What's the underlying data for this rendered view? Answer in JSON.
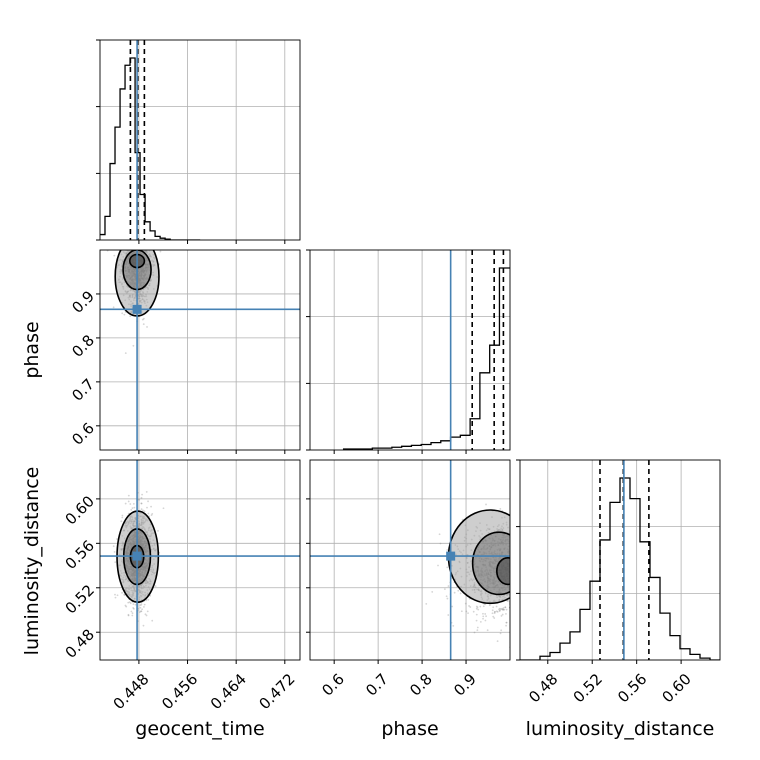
{
  "chart_data": {
    "type": "corner",
    "parameters": [
      "geocent_time",
      "phase",
      "luminosity_distance"
    ],
    "axis_labels": {
      "geocent_time": "geocent_time",
      "phase": "phase",
      "luminosity_distance": "luminosity_distance"
    },
    "ranges": {
      "geocent_time": [
        0.4416,
        0.4745
      ],
      "phase": [
        0.545,
        1.0
      ],
      "luminosity_distance": [
        0.455,
        0.635
      ]
    },
    "ticks": {
      "geocent_time": [
        0.448,
        0.456,
        0.464,
        0.472
      ],
      "phase": [
        0.6,
        0.7,
        0.8,
        0.9
      ],
      "luminosity_distance": [
        0.48,
        0.52,
        0.56,
        0.6
      ]
    },
    "tick_labels": {
      "geocent_time": [
        "0.448",
        "0.456",
        "0.464",
        "0.472"
      ],
      "phase": [
        "0.6",
        "0.7",
        "0.8",
        "0.9"
      ],
      "luminosity_distance": [
        "0.48",
        "0.52",
        "0.56",
        "0.60"
      ]
    },
    "truths": {
      "geocent_time": 0.4477,
      "phase": 0.865,
      "luminosity_distance": 0.5485
    },
    "quantiles": {
      "geocent_time": [
        0.4466,
        0.4478,
        0.4489
      ],
      "phase": [
        0.914,
        0.964,
        0.985
      ],
      "luminosity_distance": [
        0.527,
        0.548,
        0.571
      ]
    },
    "histograms": {
      "geocent_time": {
        "edges": [
          0.4416,
          0.44242,
          0.44325,
          0.44407,
          0.4449,
          0.44572,
          0.44654,
          0.44737,
          0.44819,
          0.44902,
          0.44984,
          0.45066,
          0.45149,
          0.45231,
          0.45314,
          0.45396,
          0.45478,
          0.45561,
          0.45643,
          0.45726,
          0.45808
        ],
        "counts": [
          0.03,
          0.13,
          0.42,
          0.62,
          0.83,
          0.96,
          1.0,
          0.48,
          0.25,
          0.1,
          0.05,
          0.02,
          0.01,
          0.005,
          0,
          0,
          0,
          0,
          0,
          0
        ]
      },
      "phase": {
        "edges": [
          0.62,
          0.6423,
          0.6645,
          0.6868,
          0.709,
          0.7313,
          0.7535,
          0.7758,
          0.798,
          0.8203,
          0.8425,
          0.8648,
          0.887,
          0.9093,
          0.9315,
          0.9538,
          0.976,
          1.0
        ],
        "counts": [
          0.005,
          0.005,
          0.005,
          0.01,
          0.01,
          0.015,
          0.02,
          0.025,
          0.03,
          0.04,
          0.05,
          0.07,
          0.08,
          0.17,
          0.42,
          0.57,
          0.99
        ]
      },
      "luminosity_distance": {
        "edges": [
          0.455,
          0.464,
          0.473,
          0.482,
          0.491,
          0.5,
          0.509,
          0.518,
          0.527,
          0.536,
          0.545,
          0.554,
          0.563,
          0.572,
          0.581,
          0.59,
          0.599,
          0.608,
          0.617,
          0.626,
          0.635
        ],
        "counts": [
          0.0,
          0.0,
          0.02,
          0.04,
          0.09,
          0.15,
          0.27,
          0.42,
          0.64,
          0.84,
          0.97,
          0.86,
          0.63,
          0.44,
          0.25,
          0.13,
          0.06,
          0.03,
          0.01,
          0.0
        ]
      }
    },
    "pairs": [
      {
        "x": "geocent_time",
        "y": "phase",
        "peak": [
          0.4477,
          0.975
        ],
        "spread": [
          0.0012,
          0.05
        ],
        "contours": [
          {
            "level": "inner",
            "center": [
              0.4477,
              0.975
            ],
            "radii": [
              0.0012,
              0.015
            ]
          },
          {
            "level": "middle",
            "center": [
              0.4477,
              0.955
            ],
            "radii": [
              0.0023,
              0.045
            ]
          },
          {
            "level": "outer",
            "center": [
              0.4477,
              0.94
            ],
            "radii": [
              0.0036,
              0.09
            ]
          }
        ]
      },
      {
        "x": "geocent_time",
        "y": "luminosity_distance",
        "peak": [
          0.4477,
          0.548
        ],
        "spread": [
          0.0012,
          0.02
        ],
        "contours": [
          {
            "level": "inner",
            "center": [
              0.4477,
              0.548
            ],
            "radii": [
              0.0011,
              0.01
            ]
          },
          {
            "level": "middle",
            "center": [
              0.4477,
              0.548
            ],
            "radii": [
              0.0022,
              0.025
            ]
          },
          {
            "level": "outer",
            "center": [
              0.4478,
              0.548
            ],
            "radii": [
              0.0034,
              0.041
            ]
          }
        ]
      },
      {
        "x": "phase",
        "y": "luminosity_distance",
        "peak": [
          0.99,
          0.535
        ],
        "spread": [
          0.05,
          0.02
        ],
        "contours": [
          {
            "level": "inner",
            "center": [
              0.995,
              0.535
            ],
            "radii": [
              0.025,
              0.012
            ]
          },
          {
            "level": "middle",
            "center": [
              0.975,
              0.542
            ],
            "radii": [
              0.06,
              0.028
            ]
          },
          {
            "level": "outer",
            "center": [
              0.955,
              0.548
            ],
            "radii": [
              0.095,
              0.042
            ]
          }
        ]
      }
    ],
    "colors": {
      "truth": "#4682b4",
      "hist": "#000000",
      "grid": "#b0b0b0",
      "density": [
        "#d9d9d9",
        "#a6a6a6",
        "#737373",
        "#404040"
      ],
      "points": "#888888"
    },
    "grid": true
  }
}
